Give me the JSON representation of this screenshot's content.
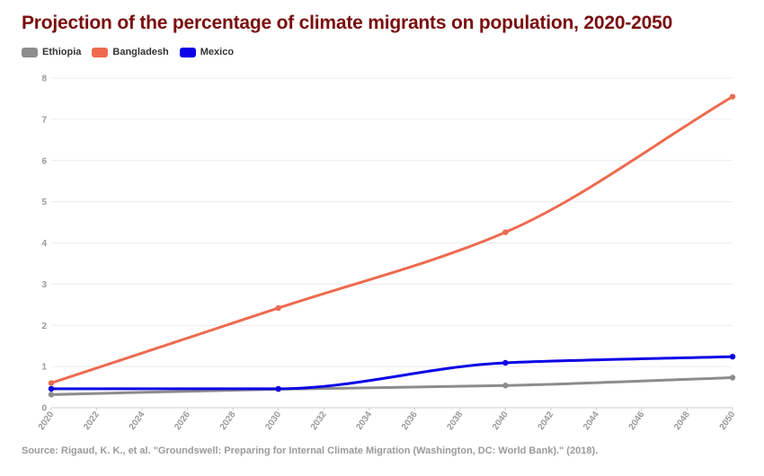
{
  "title": "Projection of the percentage of climate migrants on population, 2020-2050",
  "source": "Source: Rigaud, K. K., et al. \"Groundswell: Preparing for Internal Climate Migration (Washington, DC: World Bank).\" (2018).",
  "legend": [
    {
      "label": "Ethiopia",
      "color": "#8c8c8c"
    },
    {
      "label": "Bangladesh",
      "color": "#ee6a4f"
    },
    {
      "label": "Mexico",
      "color": "#0b00e6"
    }
  ],
  "chart_data": {
    "type": "line",
    "title": "Projection of the percentage of climate migrants on population, 2020-2050",
    "xlabel": "",
    "ylabel": "",
    "xlim": [
      2020,
      2050
    ],
    "ylim": [
      0,
      8
    ],
    "x_ticks": [
      "2020",
      "2022",
      "2024",
      "2026",
      "2028",
      "2030",
      "2032",
      "2034",
      "2036",
      "2038",
      "2040",
      "2042",
      "2044",
      "2046",
      "2048",
      "2050"
    ],
    "y_ticks": [
      "0",
      "1",
      "2",
      "3",
      "4",
      "5",
      "6",
      "7",
      "8"
    ],
    "grid": true,
    "legend_position": "top-left",
    "x": [
      2020,
      2030,
      2040,
      2050
    ],
    "series": [
      {
        "name": "Ethiopia",
        "color": "#8c8c8c",
        "values": [
          0.32,
          0.45,
          0.54,
          0.73
        ]
      },
      {
        "name": "Bangladesh",
        "color": "#ee6a4f",
        "values": [
          0.6,
          2.42,
          4.26,
          7.55
        ]
      },
      {
        "name": "Mexico",
        "color": "#0b00e6",
        "values": [
          0.46,
          0.46,
          1.09,
          1.24
        ]
      }
    ]
  }
}
